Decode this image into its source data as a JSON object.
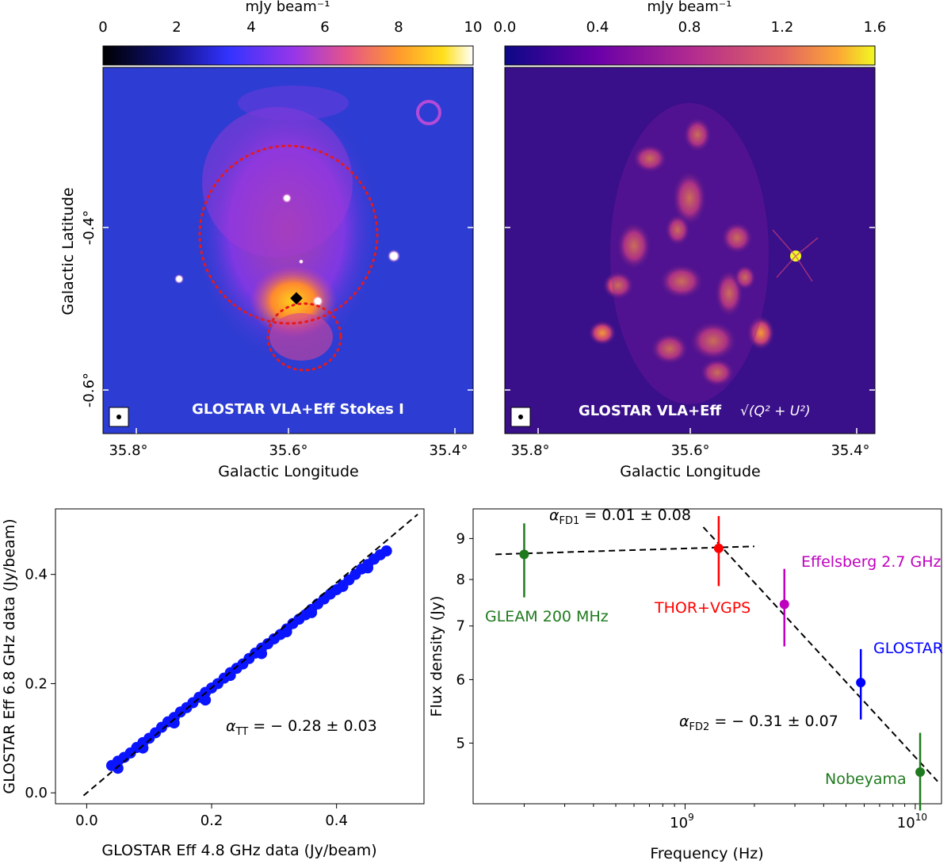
{
  "colors": {
    "panel_a_bg": "#2d3cd2",
    "panel_b_bg": "#3a0f8a",
    "scatter_points": "#0a14ff",
    "ellipse": "#e41a1c",
    "gleam": "#1f7a1f",
    "thor": "#ff0000",
    "effelsberg": "#bf00bf",
    "glostar": "#0000ff",
    "nobeyama": "#1f7a1f"
  },
  "maps": [
    {
      "id": "stokes-i",
      "colorbar_label": "mJy beam⁻¹",
      "colorbar_ticks": [
        "0",
        "2",
        "4",
        "6",
        "8",
        "10"
      ],
      "colormap": "gnuplot2-like",
      "caption": "GLOSTAR VLA+Eff Stokes I",
      "x_label": "Galactic Longitude",
      "y_label": "Galactic Latitude",
      "x_ticks": [
        "35.8°",
        "35.6°",
        "35.4°"
      ],
      "y_ticks": [
        "-0.4°",
        "-0.6°"
      ]
    },
    {
      "id": "polarized-intensity",
      "colorbar_label": "mJy beam⁻¹",
      "colorbar_ticks": [
        "0.0",
        "0.4",
        "0.8",
        "1.2",
        "1.6"
      ],
      "colormap": "plasma",
      "caption_prefix": "GLOSTAR VLA+Eff",
      "caption_math": "√(Q² + U²)",
      "x_label": "Galactic Longitude",
      "x_ticks": [
        "35.8°",
        "35.6°",
        "35.4°"
      ]
    }
  ],
  "chart_data": [
    {
      "type": "scatter",
      "xlabel": "GLOSTAR Eff 4.8 GHz data (Jy/beam)",
      "ylabel": "GLOSTAR Eff 6.8 GHz data (Jy/beam)",
      "xlim": [
        -0.05,
        0.54
      ],
      "ylim": [
        -0.02,
        0.52
      ],
      "xticks": [
        "0.0",
        "0.2",
        "0.4"
      ],
      "yticks": [
        "0.0",
        "0.2",
        "0.4"
      ],
      "xtick_values": [
        0.0,
        0.2,
        0.4
      ],
      "ytick_values": [
        0.0,
        0.2,
        0.4
      ],
      "fit_line": {
        "x": [
          -0.005,
          0.53
        ],
        "y": [
          -0.005,
          0.51
        ]
      },
      "annotation": {
        "symbol": "α",
        "sub": "TT",
        "text": " = − 0.28 ± 0.03"
      },
      "points_x": [
        0.04,
        0.05,
        0.06,
        0.07,
        0.08,
        0.09,
        0.1,
        0.11,
        0.12,
        0.13,
        0.14,
        0.15,
        0.16,
        0.17,
        0.18,
        0.19,
        0.2,
        0.21,
        0.22,
        0.23,
        0.24,
        0.25,
        0.26,
        0.27,
        0.28,
        0.29,
        0.3,
        0.31,
        0.32,
        0.33,
        0.34,
        0.35,
        0.36,
        0.37,
        0.38,
        0.39,
        0.4,
        0.41,
        0.42,
        0.43,
        0.44,
        0.45,
        0.46,
        0.47,
        0.48,
        0.05,
        0.09,
        0.14,
        0.19,
        0.23,
        0.28,
        0.32,
        0.36,
        0.41,
        0.45
      ],
      "points_y": [
        0.05,
        0.058,
        0.065,
        0.073,
        0.083,
        0.092,
        0.1,
        0.11,
        0.12,
        0.13,
        0.138,
        0.148,
        0.156,
        0.165,
        0.175,
        0.184,
        0.192,
        0.2,
        0.21,
        0.22,
        0.228,
        0.236,
        0.246,
        0.256,
        0.265,
        0.273,
        0.282,
        0.29,
        0.3,
        0.31,
        0.318,
        0.326,
        0.336,
        0.346,
        0.355,
        0.364,
        0.372,
        0.38,
        0.39,
        0.4,
        0.41,
        0.418,
        0.428,
        0.436,
        0.443,
        0.045,
        0.082,
        0.128,
        0.17,
        0.215,
        0.255,
        0.295,
        0.33,
        0.378,
        0.412
      ]
    },
    {
      "type": "scatter",
      "xscale": "log",
      "yscale": "log",
      "xlabel": "Frequency (Hz)",
      "ylabel": "Flux density (Jy)",
      "xlim": [
        120000000.0,
        13000000000.0
      ],
      "ylim": [
        4.2,
        9.8
      ],
      "xticks": [
        {
          "base": "10",
          "exp": "9",
          "value": 1000000000.0
        },
        {
          "base": "10",
          "exp": "10",
          "value": 10000000000.0
        }
      ],
      "yticks": [
        "5",
        "6",
        "7",
        "8",
        "9"
      ],
      "ytick_values": [
        5,
        6,
        7,
        8,
        9
      ],
      "series": [
        {
          "name": "GLEAM 200 MHz",
          "x": 200000000.0,
          "y": 8.6,
          "yerr_low": 7.6,
          "yerr_high": 9.4,
          "color_key": "gleam"
        },
        {
          "name": "THOR+VGPS",
          "x": 1400000000.0,
          "y": 8.75,
          "yerr_low": 7.85,
          "yerr_high": 9.6,
          "color_key": "thor"
        },
        {
          "name": "Effelsberg 2.7 GHz",
          "x": 2700000000.0,
          "y": 7.45,
          "yerr_low": 6.6,
          "yerr_high": 8.25,
          "color_key": "effelsberg"
        },
        {
          "name": "GLOSTAR",
          "x": 5800000000.0,
          "y": 5.95,
          "yerr_low": 5.35,
          "yerr_high": 6.55,
          "color_key": "glostar"
        },
        {
          "name": "Nobeyama",
          "x": 10500000000.0,
          "y": 4.6,
          "yerr_low": 4.12,
          "yerr_high": 5.15,
          "color_key": "nobeyama"
        }
      ],
      "fit_lines": [
        {
          "x": [
            150000000.0,
            2000000000.0
          ],
          "y": [
            8.6,
            8.8
          ]
        },
        {
          "x": [
            1200000000.0,
            12500000000.0
          ],
          "y": [
            9.3,
            4.48
          ]
        }
      ],
      "annotations": [
        {
          "symbol": "α",
          "sub": "FD1",
          "text": " = 0.01 ± 0.08"
        },
        {
          "symbol": "α",
          "sub": "FD2",
          "text": " = − 0.31 ± 0.07"
        }
      ]
    }
  ]
}
